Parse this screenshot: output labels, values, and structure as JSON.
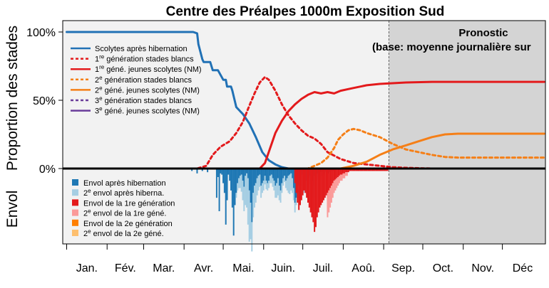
{
  "chart_data": {
    "type": "line",
    "title": "Centre des Préalpes 1000m Exposition Sud",
    "ylabel_top": "Proportion des stades",
    "ylabel_bottom": "Envol",
    "yticks": [
      "100%",
      "50%",
      "0%"
    ],
    "ylim": [
      0,
      110
    ],
    "x_range_doy": [
      -3,
      367
    ],
    "months": [
      "Jan.",
      "Fév.",
      "Mar.",
      "Avr.",
      "Mai.",
      "Juin.",
      "Juil.",
      "Aoû.",
      "Sep.",
      "Oct.",
      "Nov.",
      "Déc"
    ],
    "forecast": {
      "start_doy": 247,
      "line1": "Pronostic",
      "line2": "(base: moyenne journalière sur"
    },
    "series": [
      {
        "legend": "Scolytes après hibernation",
        "color": "#2171b5",
        "dash": "solid",
        "x": [
          0,
          60,
          95,
          97,
          100,
          101,
          104,
          105,
          108,
          110,
          112,
          116,
          120,
          122,
          123,
          126,
          127,
          128,
          130,
          133,
          135,
          140,
          145,
          150,
          155,
          160,
          165,
          170,
          200,
          366
        ],
        "y": [
          100,
          100,
          100,
          100,
          99,
          91,
          80,
          78,
          78,
          78,
          72,
          72,
          65,
          65,
          60,
          60,
          57,
          53,
          45,
          42,
          40,
          33,
          23,
          12,
          6,
          3,
          1,
          0,
          0,
          0
        ]
      },
      {
        "legend": "1re génération stades blancs",
        "color": "#e31a1c",
        "dash": "dotted",
        "x": [
          0,
          100,
          107,
          112,
          118,
          125,
          130,
          135,
          140,
          144,
          148,
          152,
          155,
          160,
          165,
          170,
          175,
          180,
          185,
          190,
          195,
          200,
          210,
          220,
          230,
          240,
          250,
          260,
          280,
          300,
          366
        ],
        "y": [
          0,
          0,
          2,
          10,
          16,
          20,
          26,
          34,
          46,
          55,
          63,
          67,
          65,
          57,
          47,
          39,
          33,
          28,
          24,
          22,
          18,
          12,
          7,
          4,
          3,
          2,
          1,
          0.5,
          0,
          0,
          0
        ]
      },
      {
        "legend": "1re géné. jeunes scolytes (NM)",
        "color": "#e31a1c",
        "dash": "solid",
        "x": [
          0,
          148,
          152,
          156,
          160,
          165,
          170,
          175,
          180,
          185,
          190,
          195,
          200,
          205,
          210,
          220,
          230,
          240,
          250,
          260,
          280,
          300,
          366
        ],
        "y": [
          0,
          0,
          4,
          15,
          26,
          35,
          42,
          47,
          51,
          54,
          56,
          55,
          56,
          55,
          57,
          59,
          61,
          62,
          62.5,
          63,
          63.5,
          63.5,
          63.5
        ]
      },
      {
        "legend": "2e génération stades blancs",
        "color": "#f57f17",
        "dash": "dotted",
        "x": [
          0,
          185,
          190,
          195,
          200,
          205,
          208,
          212,
          216,
          220,
          225,
          230,
          240,
          250,
          260,
          270,
          280,
          290,
          300,
          320,
          366
        ],
        "y": [
          0,
          0,
          2,
          4,
          8,
          15,
          21,
          25,
          28,
          29,
          28,
          26,
          23,
          18,
          14,
          12,
          10,
          8.5,
          8,
          8,
          8
        ]
      },
      {
        "legend": "2e géné. jeunes scolytes (NM)",
        "color": "#f57f17",
        "dash": "solid",
        "x": [
          0,
          210,
          220,
          230,
          240,
          250,
          260,
          270,
          280,
          290,
          300,
          320,
          366
        ],
        "y": [
          0,
          0,
          2,
          5,
          10,
          14,
          17,
          20,
          23,
          25,
          25.5,
          25.5,
          25.5
        ]
      },
      {
        "legend": "3e génération stades blancs",
        "color": "#6a3d9a",
        "dash": "dotted",
        "x": [
          0,
          366
        ],
        "y": [
          0,
          0
        ]
      },
      {
        "legend": "3e géné. jeunes scolytes (NM)",
        "color": "#6a3d9a",
        "dash": "solid",
        "x": [
          0,
          366
        ],
        "y": [
          0,
          0
        ]
      }
    ],
    "flight_legend": [
      {
        "label": "Envol après hibernation",
        "color": "#1f78b4"
      },
      {
        "label": "2e envol après hiberna.",
        "color": "#a6cee3"
      },
      {
        "label": "Envol de la 1re génération",
        "color": "#e31a1c"
      },
      {
        "label": "2e envol de la 1re géné.",
        "color": "#fb9a99"
      },
      {
        "label": "Envol de la 2e génération",
        "color": "#ff7f00"
      },
      {
        "label": "2e envol de la 2e géné.",
        "color": "#fdbf6f"
      }
    ],
    "flight_bars": {
      "after_hibernation": {
        "color": "#1f78b4",
        "x": [
          96,
          100,
          104,
          108,
          115,
          116,
          117,
          118,
          119,
          120,
          121,
          122,
          123,
          124,
          125,
          126,
          127,
          128,
          129,
          130,
          131,
          132,
          133,
          134,
          135,
          136,
          137,
          138,
          139,
          140,
          141,
          142,
          143,
          144,
          145,
          146,
          147,
          148,
          149,
          150,
          151,
          152,
          153,
          154,
          155,
          156,
          157,
          158,
          159,
          160,
          161,
          162,
          163,
          164,
          165,
          166,
          167,
          168,
          169,
          170,
          171,
          172,
          173,
          174,
          175,
          176,
          177,
          178,
          179,
          180,
          181,
          182,
          183,
          184,
          185,
          186,
          187,
          188,
          189,
          190,
          191,
          192,
          193,
          194,
          195,
          196,
          197,
          198,
          199,
          200,
          201,
          202,
          203,
          204,
          205
        ],
        "y": [
          2,
          4,
          2,
          3,
          24,
          7,
          35,
          4,
          5,
          12,
          20,
          46,
          26,
          5,
          10,
          18,
          32,
          55,
          30,
          20,
          12,
          8,
          6,
          5,
          10,
          15,
          6,
          4,
          8,
          18,
          28,
          44,
          20,
          14,
          12,
          8,
          6,
          5,
          14,
          12,
          10,
          6,
          10,
          12,
          10,
          6,
          5,
          8,
          10,
          14,
          12,
          8,
          14,
          18,
          12,
          8,
          6,
          10,
          8,
          6,
          5,
          4,
          8,
          16,
          28,
          24,
          20,
          14,
          10,
          6,
          5,
          8,
          10,
          12,
          10,
          8,
          6,
          10,
          14,
          6,
          4,
          5,
          4,
          3,
          6,
          3,
          4,
          2,
          3,
          4,
          2,
          3,
          2,
          1,
          2
        ]
      },
      "second_after_hibernation": {
        "color": "#a6cee3",
        "x": [
          130,
          131,
          132,
          133,
          134,
          135,
          136,
          137,
          138,
          139,
          140,
          141,
          142,
          143,
          144,
          145,
          146,
          147,
          148,
          149,
          150,
          151,
          152,
          153,
          154,
          155,
          156,
          157,
          158,
          159,
          160,
          161,
          162,
          163,
          164,
          165,
          166,
          167,
          168,
          169,
          170,
          171,
          172,
          173,
          174,
          175,
          176,
          177,
          178,
          179,
          180,
          181,
          182,
          183,
          184,
          185,
          186,
          187,
          188,
          189,
          190,
          191,
          192,
          193,
          194,
          195,
          196,
          197,
          198
        ],
        "y": [
          4,
          6,
          8,
          10,
          14,
          16,
          20,
          24,
          28,
          38,
          42,
          30,
          24,
          20,
          18,
          16,
          14,
          12,
          10,
          10,
          8,
          8,
          7,
          7,
          6,
          6,
          6,
          7,
          7,
          8,
          10,
          12,
          14,
          12,
          10,
          8,
          6,
          5,
          6,
          10,
          14,
          16,
          14,
          12,
          10,
          8,
          6,
          4,
          3,
          6,
          8,
          10,
          12,
          10,
          8,
          6,
          5,
          6,
          8,
          10,
          8,
          6,
          4,
          3,
          4,
          3,
          2,
          2,
          1
        ]
      },
      "first_generation": {
        "color": "#e31a1c",
        "x": [
          175,
          176,
          177,
          178,
          179,
          180,
          181,
          182,
          183,
          184,
          185,
          186,
          187,
          188,
          189,
          190,
          191,
          192,
          193,
          194,
          195,
          196,
          197,
          198,
          199,
          200,
          201,
          202,
          203,
          204,
          205,
          206,
          207,
          208,
          209,
          210,
          211,
          212,
          213,
          214,
          215,
          216,
          217,
          218,
          219,
          220,
          221,
          222,
          223,
          224,
          225,
          226,
          227,
          228,
          229,
          230,
          231,
          232,
          233,
          234,
          235,
          236,
          237,
          238,
          239,
          240,
          241,
          242,
          243,
          244,
          245,
          246
        ],
        "y": [
          12,
          20,
          28,
          34,
          30,
          26,
          22,
          18,
          20,
          24,
          28,
          32,
          36,
          40,
          44,
          52,
          48,
          40,
          36,
          32,
          30,
          28,
          26,
          24,
          22,
          20,
          18,
          16,
          14,
          12,
          10,
          9,
          8,
          7,
          6,
          5,
          5,
          4,
          4,
          3,
          3,
          3,
          2,
          2,
          2,
          2,
          2,
          2,
          2,
          2,
          2,
          2,
          2,
          2,
          2,
          2,
          2,
          2,
          2,
          2,
          2,
          2,
          2,
          2,
          2,
          2,
          2,
          2,
          2,
          2,
          2,
          2
        ]
      },
      "second_first_generation": {
        "color": "#fb9a99",
        "x": [
          200,
          201,
          202,
          203,
          204,
          205,
          206,
          207,
          208,
          209,
          210,
          211,
          212,
          213,
          214,
          215
        ],
        "y": [
          20,
          18,
          16,
          14,
          12,
          10,
          9,
          8,
          7,
          6,
          5,
          5,
          4,
          4,
          3,
          3
        ]
      }
    }
  }
}
